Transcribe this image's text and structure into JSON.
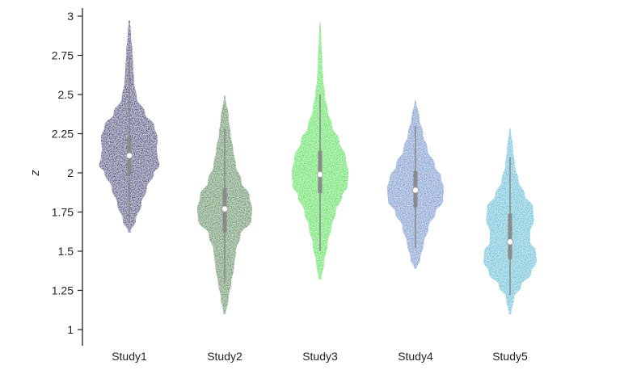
{
  "chart_data": {
    "type": "violin",
    "ylabel": "z",
    "xlabel": "",
    "ylim": [
      1,
      3
    ],
    "yticks": [
      1,
      1.25,
      1.5,
      1.75,
      2,
      2.25,
      2.5,
      2.75,
      3
    ],
    "ytick_labels": [
      "1",
      "1.25",
      "1.5",
      "1.75",
      "2",
      "2.25",
      "2.5",
      "2.75",
      "3"
    ],
    "grid": false,
    "categories": [
      "Study1",
      "Study2",
      "Study3",
      "Study4",
      "Study5"
    ],
    "series": [
      {
        "category": "Study1",
        "color": "#2c2f7a",
        "median": 2.11,
        "q1": 1.98,
        "q3": 2.23,
        "whisker_low": 1.68,
        "whisker_high": 2.74,
        "min": 1.62,
        "max": 2.97,
        "density_y": [
          1.62,
          1.7,
          1.8,
          1.9,
          2.0,
          2.05,
          2.1,
          2.15,
          2.22,
          2.3,
          2.38,
          2.48,
          2.58,
          2.68,
          2.78,
          2.88,
          2.97
        ],
        "density_w": [
          0.01,
          0.07,
          0.13,
          0.19,
          0.27,
          0.33,
          0.31,
          0.3,
          0.31,
          0.27,
          0.17,
          0.08,
          0.05,
          0.04,
          0.03,
          0.015,
          0.005
        ]
      },
      {
        "category": "Study2",
        "color": "#4f8d4f",
        "median": 1.77,
        "q1": 1.62,
        "q3": 1.9,
        "whisker_low": 1.3,
        "whisker_high": 2.28,
        "min": 1.1,
        "max": 2.49,
        "density_y": [
          1.1,
          1.2,
          1.3,
          1.4,
          1.5,
          1.6,
          1.7,
          1.77,
          1.85,
          1.95,
          2.05,
          2.15,
          2.25,
          2.35,
          2.49
        ],
        "density_w": [
          0.01,
          0.04,
          0.07,
          0.1,
          0.12,
          0.17,
          0.29,
          0.3,
          0.27,
          0.18,
          0.12,
          0.09,
          0.06,
          0.04,
          0.005
        ]
      },
      {
        "category": "Study3",
        "color": "#3de33d",
        "median": 1.99,
        "q1": 1.87,
        "q3": 2.14,
        "whisker_low": 1.5,
        "whisker_high": 2.5,
        "min": 1.32,
        "max": 2.96,
        "density_y": [
          1.32,
          1.42,
          1.55,
          1.65,
          1.75,
          1.85,
          1.92,
          2.0,
          2.1,
          2.2,
          2.3,
          2.4,
          2.5,
          2.6,
          2.72,
          2.85,
          2.96
        ],
        "density_w": [
          0.01,
          0.04,
          0.08,
          0.12,
          0.17,
          0.24,
          0.3,
          0.31,
          0.28,
          0.21,
          0.13,
          0.08,
          0.05,
          0.03,
          0.02,
          0.01,
          0.003
        ]
      },
      {
        "category": "Study4",
        "color": "#6e95cf",
        "median": 1.89,
        "q1": 1.78,
        "q3": 2.01,
        "whisker_low": 1.52,
        "whisker_high": 2.3,
        "min": 1.39,
        "max": 2.46,
        "density_y": [
          1.39,
          1.45,
          1.55,
          1.65,
          1.75,
          1.82,
          1.9,
          1.97,
          2.05,
          2.15,
          2.25,
          2.35,
          2.46
        ],
        "density_w": [
          0.01,
          0.05,
          0.09,
          0.14,
          0.22,
          0.3,
          0.31,
          0.28,
          0.21,
          0.13,
          0.08,
          0.04,
          0.005
        ]
      },
      {
        "category": "Study5",
        "color": "#4fc0d8",
        "median": 1.56,
        "q1": 1.45,
        "q3": 1.74,
        "whisker_low": 1.22,
        "whisker_high": 2.1,
        "min": 1.1,
        "max": 2.28,
        "density_y": [
          1.1,
          1.2,
          1.28,
          1.36,
          1.44,
          1.5,
          1.56,
          1.62,
          1.7,
          1.78,
          1.86,
          1.95,
          2.05,
          2.15,
          2.28
        ],
        "density_w": [
          0.01,
          0.04,
          0.12,
          0.23,
          0.29,
          0.28,
          0.22,
          0.22,
          0.26,
          0.25,
          0.16,
          0.09,
          0.05,
          0.03,
          0.005
        ]
      }
    ]
  }
}
